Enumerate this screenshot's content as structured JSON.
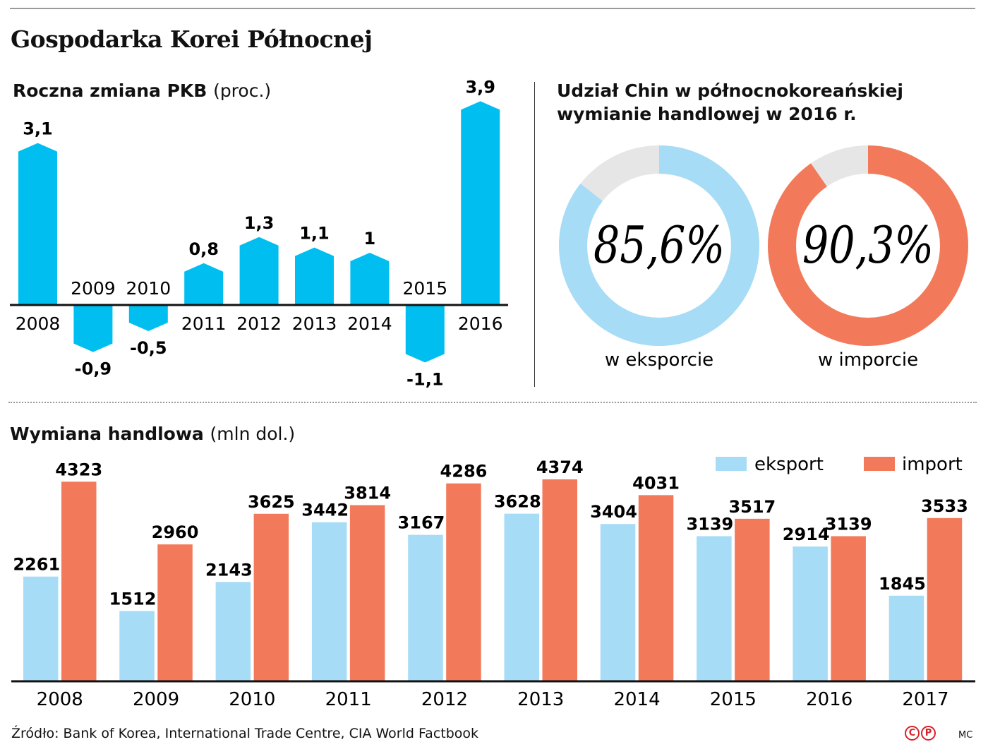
{
  "title": "Gospodarka Korei Północnej",
  "source": "Źródło: Bank of Korea, International Trade Centre, CIA World Factbook",
  "credits": {
    "c": "C",
    "p": "P",
    "author": "MC"
  },
  "colors": {
    "gdp": "#00bff0",
    "export": "#a6dcf6",
    "import": "#f27a5a",
    "rest": "#e6e6e6"
  },
  "chart_data": [
    {
      "type": "bar",
      "title": "Roczna zmiana PKB",
      "unit": "(proc.)",
      "categories": [
        "2008",
        "2009",
        "2010",
        "2011",
        "2012",
        "2013",
        "2014",
        "2015",
        "2016"
      ],
      "values": [
        3.1,
        -0.9,
        -0.5,
        0.8,
        1.3,
        1.1,
        1,
        -1.1,
        3.9
      ],
      "labels": [
        "3,1",
        "-0,9",
        "-0,5",
        "0,8",
        "1,3",
        "1,1",
        "1",
        "-1,1",
        "3,9"
      ],
      "grid": false
    },
    {
      "type": "pie",
      "title_line1": "Udział Chin w północnokoreańskiej",
      "title_line2": "wymianie handlowej w 2016 r.",
      "donuts": [
        {
          "value": 85.6,
          "label": "85,6%",
          "caption": "w eksporcie",
          "color": "#a6dcf6"
        },
        {
          "value": 90.3,
          "label": "90,3%",
          "caption": "w imporcie",
          "color": "#f27a5a"
        }
      ]
    },
    {
      "type": "bar",
      "title": "Wymiana handlowa",
      "unit": "(mln dol.)",
      "categories": [
        "2008",
        "2009",
        "2010",
        "2011",
        "2012",
        "2013",
        "2014",
        "2015",
        "2016",
        "2017"
      ],
      "series": [
        {
          "name": "eksport",
          "values": [
            2261,
            1512,
            2143,
            3442,
            3167,
            3628,
            3404,
            3139,
            2914,
            1845
          ]
        },
        {
          "name": "import",
          "values": [
            4323,
            2960,
            3625,
            3814,
            4286,
            4374,
            4031,
            3517,
            3139,
            3533
          ]
        }
      ],
      "legend": "top-right",
      "grid": false
    }
  ]
}
